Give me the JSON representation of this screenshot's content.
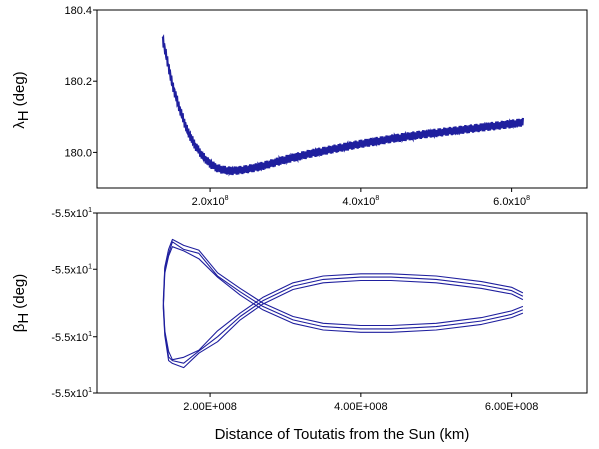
{
  "figure": {
    "xlabel": "Distance of Toutatis from the Sun (km)"
  },
  "chart_data": [
    {
      "type": "line",
      "ylabel_symbol": "λ",
      "ylabel_subscript": "H",
      "ylabel_unit": "(deg)",
      "xlim": [
        50000000,
        700000000
      ],
      "ylim": [
        179.9,
        180.4
      ],
      "x_ticks": [
        200000000,
        400000000,
        600000000
      ],
      "x_tick_labels": [
        {
          "mantissa": "2.0x10",
          "exp": "8"
        },
        {
          "mantissa": "4.0x10",
          "exp": "8"
        },
        {
          "mantissa": "6.0x10",
          "exp": "8"
        }
      ],
      "y_ticks": [
        180.0,
        180.2,
        180.4
      ],
      "y_tick_labels": [
        "180.0",
        "180.2",
        "180.4"
      ],
      "series": [
        {
          "color": "#1f1f9e",
          "band_half_width_deg": 0.012,
          "x": [
            137000000,
            140000000,
            145000000,
            150000000,
            160000000,
            170000000,
            180000000,
            190000000,
            200000000,
            210000000,
            220000000,
            230000000,
            240000000,
            260000000,
            280000000,
            300000000,
            330000000,
            360000000,
            400000000,
            440000000,
            480000000,
            520000000,
            560000000,
            600000000,
            615000000
          ],
          "y": [
            180.32,
            180.29,
            180.24,
            180.19,
            180.12,
            180.06,
            180.02,
            179.99,
            179.968,
            179.955,
            179.95,
            179.948,
            179.95,
            179.957,
            179.968,
            179.98,
            179.995,
            180.008,
            180.024,
            180.038,
            180.05,
            180.06,
            180.07,
            180.08,
            180.085
          ]
        }
      ]
    },
    {
      "type": "line",
      "ylabel_symbol": "β",
      "ylabel_subscript": "H",
      "ylabel_unit": "(deg)",
      "xlim": [
        50000000,
        700000000
      ],
      "ylim": [
        -4.0,
        4.0
      ],
      "y_note": "relative offset within -5.5x10^1 deg; the printed tick labels all read -5.5x10^1",
      "x_ticks": [
        200000000,
        400000000,
        600000000
      ],
      "x_tick_labels": [
        "2.00E+008",
        "4.00E+008",
        "6.00E+008"
      ],
      "y_ticks": [
        -4.0,
        -1.5,
        1.5,
        4.0
      ],
      "y_tick_labels": [
        {
          "mantissa": "-5.5x10",
          "exp": "1"
        },
        {
          "mantissa": "-5.5x10",
          "exp": "1"
        },
        {
          "mantissa": "-5.5x10",
          "exp": "1"
        },
        {
          "mantissa": "-5.5x10",
          "exp": "1"
        }
      ],
      "series": [
        {
          "color": "#1f1f9e",
          "strands": 3,
          "strand_spread": 0.15,
          "x": [
            615000000,
            600000000,
            560000000,
            500000000,
            440000000,
            400000000,
            350000000,
            310000000,
            270000000,
            240000000,
            210000000,
            185000000,
            165000000,
            150000000,
            145000000,
            140000000,
            138000000,
            140000000,
            145000000,
            150000000,
            165000000,
            185000000,
            210000000,
            240000000,
            270000000,
            310000000,
            350000000,
            400000000,
            440000000,
            500000000,
            560000000,
            600000000,
            615000000
          ],
          "y": [
            0.3,
            0.55,
            0.8,
            1.05,
            1.15,
            1.15,
            1.05,
            0.75,
            0.1,
            -0.6,
            -1.45,
            -2.2,
            -2.6,
            -2.65,
            -2.3,
            -1.4,
            0.0,
            1.4,
            2.3,
            2.6,
            2.5,
            2.1,
            1.3,
            0.5,
            -0.15,
            -0.75,
            -1.05,
            -1.15,
            -1.15,
            -1.05,
            -0.8,
            -0.5,
            -0.3
          ]
        }
      ]
    }
  ]
}
